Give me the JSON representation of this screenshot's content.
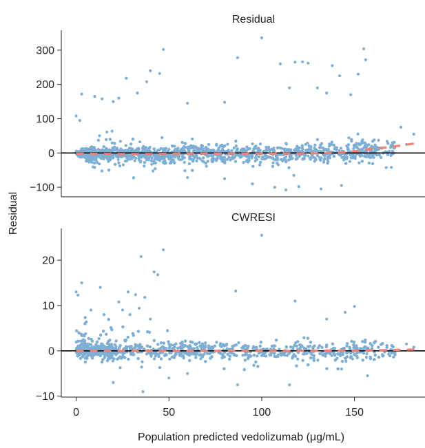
{
  "figure": {
    "shared_ylabel": "Residual",
    "shared_xlabel": "Population predicted vedolizumab (μg/mL)"
  },
  "colors": {
    "points": "#7eaed4",
    "trend": "#f08070",
    "zero_line": "#000000",
    "axis": "#222222"
  },
  "chart_data": [
    {
      "type": "scatter",
      "title": "Residual",
      "xlabel": "",
      "ylabel": "Residual",
      "xlim": [
        -8,
        188
      ],
      "ylim": [
        -128,
        358
      ],
      "xticks": [],
      "yticks": [
        -100,
        0,
        100,
        200,
        300
      ],
      "reference_line": 0,
      "trend": {
        "style": "dashed",
        "x": [
          0,
          20,
          40,
          60,
          80,
          100,
          120,
          140,
          150,
          160,
          170,
          183
        ],
        "y": [
          -2,
          -3,
          -3,
          -2,
          -2,
          -2,
          -2,
          0,
          5,
          12,
          18,
          28
        ]
      },
      "outliers": [
        [
          100,
          336
        ],
        [
          47,
          302
        ],
        [
          155,
          304
        ],
        [
          87,
          278
        ],
        [
          156,
          272
        ],
        [
          118,
          265
        ],
        [
          122,
          266
        ],
        [
          110,
          260
        ],
        [
          125,
          262
        ],
        [
          138,
          255
        ],
        [
          40,
          240
        ],
        [
          45,
          232
        ],
        [
          27,
          218
        ],
        [
          38,
          208
        ],
        [
          142,
          225
        ],
        [
          152,
          230
        ],
        [
          3,
          172
        ],
        [
          10,
          165
        ],
        [
          14,
          158
        ],
        [
          20,
          150
        ],
        [
          60,
          145
        ],
        [
          80,
          148
        ],
        [
          135,
          175
        ],
        [
          148,
          170
        ],
        [
          33,
          175
        ],
        [
          23,
          160
        ],
        [
          115,
          190
        ],
        [
          130,
          190
        ],
        [
          0,
          108
        ],
        [
          2,
          95
        ],
        [
          175,
          75
        ],
        [
          182,
          55
        ],
        [
          178,
          25
        ],
        [
          170,
          -5
        ],
        [
          113,
          -108
        ],
        [
          107,
          -100
        ],
        [
          132,
          -105
        ],
        [
          95,
          -90
        ],
        [
          120,
          -98
        ],
        [
          60,
          -72
        ],
        [
          80,
          -75
        ],
        [
          143,
          -95
        ]
      ],
      "cloud": {
        "n": 2600,
        "x_range": [
          0,
          162
        ],
        "x_mode": [
          8,
          155
        ],
        "spread": [
          6,
          22,
          40
        ],
        "trend_follow": true
      }
    },
    {
      "type": "scatter",
      "title": "CWRESI",
      "xlabel": "Population predicted vedolizumab (μg/mL)",
      "ylabel": "",
      "xlim": [
        -8,
        188
      ],
      "ylim": [
        -10.2,
        27
      ],
      "xticks": [
        0,
        50,
        100,
        150
      ],
      "yticks": [
        -10,
        0,
        10,
        20
      ],
      "reference_line": 0,
      "trend": {
        "style": "dashed",
        "x": [
          0,
          40,
          80,
          120,
          160,
          183
        ],
        "y": [
          0,
          0,
          0,
          0,
          0.1,
          0.3
        ]
      },
      "outliers": [
        [
          100,
          25.5
        ],
        [
          47,
          22.3
        ],
        [
          35,
          20.8
        ],
        [
          42,
          17.4
        ],
        [
          44,
          16.8
        ],
        [
          3,
          15
        ],
        [
          13,
          14
        ],
        [
          0,
          13
        ],
        [
          28,
          13
        ],
        [
          32,
          12.4
        ],
        [
          37,
          11.8
        ],
        [
          34,
          9.4
        ],
        [
          1,
          12.3
        ],
        [
          86,
          13.2
        ],
        [
          118,
          11
        ],
        [
          150,
          9.8
        ],
        [
          23,
          10.8
        ],
        [
          25,
          9
        ],
        [
          178,
          1.5
        ],
        [
          182,
          0.8
        ],
        [
          170,
          0.2
        ],
        [
          36,
          -9
        ],
        [
          87,
          -7.5
        ],
        [
          115,
          -7.5
        ],
        [
          157,
          -5.5
        ],
        [
          50,
          -6
        ],
        [
          20,
          -7
        ],
        [
          143,
          -4
        ],
        [
          60,
          -5
        ],
        [
          8,
          9
        ],
        [
          15,
          8
        ],
        [
          29,
          8
        ],
        [
          40,
          7
        ],
        [
          135,
          7
        ],
        [
          145,
          8.5
        ]
      ],
      "cloud": {
        "n": 2600,
        "x_range": [
          0,
          162
        ],
        "x_mode": [
          8,
          155
        ],
        "spread": [
          1.3,
          1.6,
          3.5
        ],
        "trend_follow": false
      }
    }
  ]
}
